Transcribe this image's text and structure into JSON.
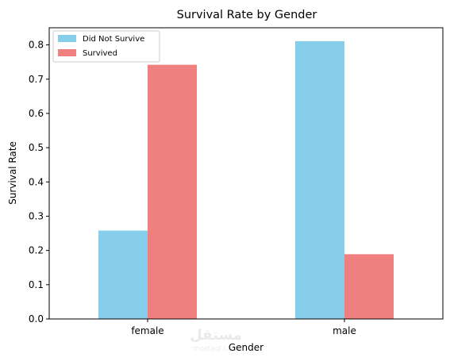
{
  "chart_data": {
    "type": "bar",
    "title": "Survival Rate by Gender",
    "xlabel": "Gender",
    "ylabel": "Survival Rate",
    "categories": [
      "female",
      "male"
    ],
    "series": [
      {
        "name": "Did Not Survive",
        "color": "#87ceeb",
        "values": [
          0.258,
          0.811
        ]
      },
      {
        "name": "Survived",
        "color": "#f08080",
        "values": [
          0.742,
          0.189
        ]
      }
    ],
    "ylim": [
      0,
      0.85
    ],
    "yticks": [
      0.0,
      0.1,
      0.2,
      0.3,
      0.4,
      0.5,
      0.6,
      0.7,
      0.8
    ],
    "ytick_labels": [
      "0.0",
      "0.1",
      "0.2",
      "0.3",
      "0.4",
      "0.5",
      "0.6",
      "0.7",
      "0.8"
    ],
    "grid": false,
    "legend_position": "top-left"
  },
  "watermark": {
    "main": "مستقل",
    "sub": "mostaql.com"
  }
}
